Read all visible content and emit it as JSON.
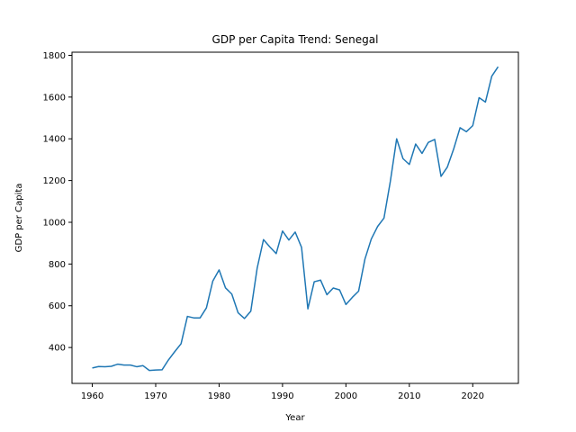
{
  "chart_data": {
    "type": "line",
    "title": "GDP per Capita Trend: Senegal",
    "xlabel": "Year",
    "ylabel": "GDP per Capita",
    "xlim": [
      1956.8,
      2027.2
    ],
    "ylim": [
      228,
      1815
    ],
    "xticks": [
      1960,
      1970,
      1980,
      1990,
      2000,
      2010,
      2020
    ],
    "yticks": [
      400,
      600,
      800,
      1000,
      1200,
      1400,
      1600,
      1800
    ],
    "grid": false,
    "series": [
      {
        "color": "#1f77b4",
        "x": [
          1960,
          1961,
          1962,
          1963,
          1964,
          1965,
          1966,
          1967,
          1968,
          1969,
          1970,
          1971,
          1972,
          1973,
          1974,
          1975,
          1976,
          1977,
          1978,
          1979,
          1980,
          1981,
          1982,
          1983,
          1984,
          1985,
          1986,
          1987,
          1988,
          1989,
          1990,
          1991,
          1992,
          1993,
          1994,
          1995,
          1996,
          1997,
          1998,
          1999,
          2000,
          2001,
          2002,
          2003,
          2004,
          2005,
          2006,
          2007,
          2008,
          2009,
          2010,
          2011,
          2012,
          2013,
          2014,
          2015,
          2016,
          2017,
          2018,
          2019,
          2020,
          2021,
          2022,
          2023,
          2024
        ],
        "y": [
          302,
          309,
          308,
          310,
          320,
          316,
          316,
          308,
          313,
          290,
          292,
          293,
          340,
          380,
          418,
          549,
          542,
          542,
          590,
          718,
          772,
          686,
          656,
          566,
          539,
          574,
          780,
          917,
          882,
          850,
          958,
          915,
          953,
          880,
          585,
          715,
          723,
          653,
          685,
          676,
          606,
          640,
          670,
          824,
          920,
          980,
          1020,
          1195,
          1400,
          1305,
          1277,
          1375,
          1330,
          1383,
          1397,
          1220,
          1265,
          1352,
          1453,
          1434,
          1463,
          1597,
          1576,
          1700,
          1745
        ]
      }
    ]
  }
}
